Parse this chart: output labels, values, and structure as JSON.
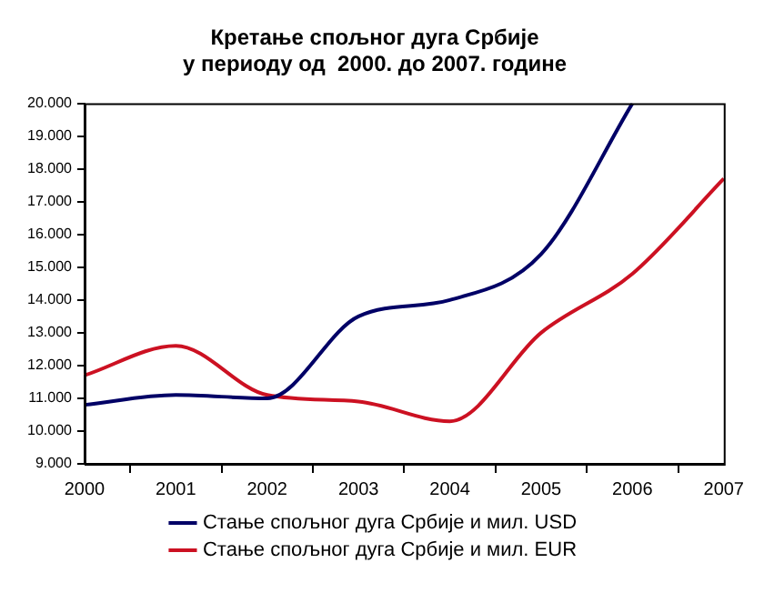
{
  "chart_data": {
    "type": "line",
    "title": "Кретање спољног дуга Србије\nу периоду од  2000. до 2007. године",
    "categories": [
      "2000",
      "2001",
      "2002",
      "2003",
      "2004",
      "2005",
      "2006",
      "2007"
    ],
    "series": [
      {
        "name": "Стање спољног дуга Србије и мил. USD",
        "color": "#000066",
        "values": [
          10800,
          11100,
          11000,
          13500,
          14000,
          15400,
          20000,
          null
        ]
      },
      {
        "name": "Стање спољног дуга Србије и мил. EUR",
        "color": "#cc1122",
        "values": [
          11700,
          12600,
          11100,
          10900,
          10300,
          13000,
          14800,
          17700
        ]
      }
    ],
    "ylim": [
      9000,
      20000
    ],
    "yticks": [
      {
        "value": 9000,
        "label": "9.000"
      },
      {
        "value": 10000,
        "label": "10.000"
      },
      {
        "value": 11000,
        "label": "11.000"
      },
      {
        "value": 12000,
        "label": "12.000"
      },
      {
        "value": 13000,
        "label": "13.000"
      },
      {
        "value": 14000,
        "label": "14.000"
      },
      {
        "value": 15000,
        "label": "15.000"
      },
      {
        "value": 16000,
        "label": "16.000"
      },
      {
        "value": 17000,
        "label": "17.000"
      },
      {
        "value": 18000,
        "label": "18.000"
      },
      {
        "value": 19000,
        "label": "19.000"
      },
      {
        "value": 20000,
        "label": "20.000"
      }
    ],
    "grid": false,
    "legend": "bottom",
    "marker": "none",
    "line_style": "solid"
  }
}
